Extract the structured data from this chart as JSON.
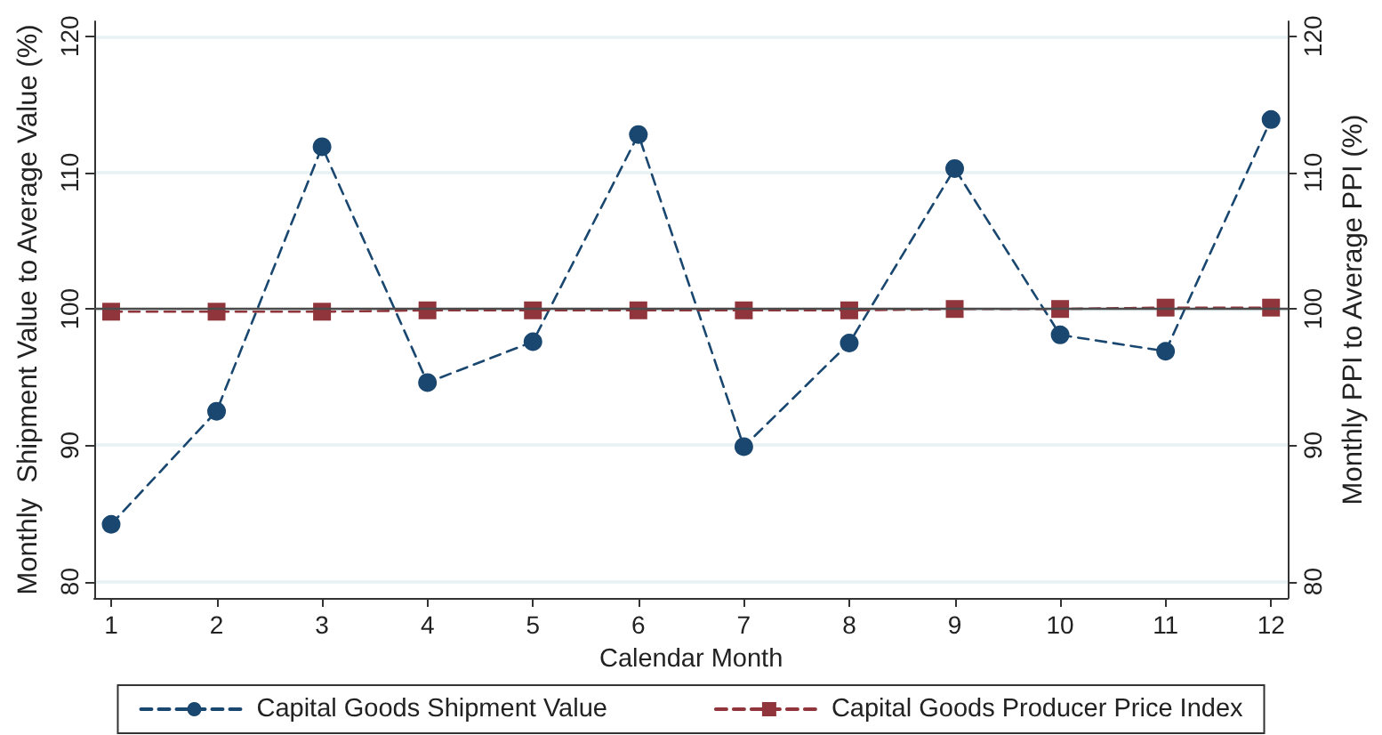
{
  "chart_data": {
    "type": "line",
    "x": [
      1,
      2,
      3,
      4,
      5,
      6,
      7,
      8,
      9,
      10,
      11,
      12
    ],
    "xlim": [
      0.84,
      12.16
    ],
    "xticks": [
      1,
      2,
      3,
      4,
      5,
      6,
      7,
      8,
      9,
      10,
      11,
      12
    ],
    "ylim": [
      78.8,
      121.1
    ],
    "yticks": [
      80,
      90,
      100,
      110,
      120
    ],
    "y2lim": [
      78.8,
      121.1
    ],
    "y2ticks": [
      80,
      90,
      100,
      110,
      120
    ],
    "xlabel": "Calendar Month",
    "ylabel": "Monthly  Shipment Value to Average Value (%)",
    "y2label": "Monthly PPI to Average PPI (%)",
    "series": [
      {
        "name": "Capital Goods Shipment Value",
        "color": "#1a476f",
        "marker": "circle",
        "values": [
          84.2,
          92.5,
          111.9,
          94.6,
          97.6,
          112.8,
          89.9,
          97.5,
          110.3,
          98.1,
          96.9,
          113.9
        ]
      },
      {
        "name": "Capital Goods Producer Price Index",
        "color": "#90353b",
        "marker": "square",
        "values": [
          99.8,
          99.8,
          99.8,
          99.9,
          99.9,
          99.9,
          99.9,
          99.9,
          100.0,
          100.0,
          100.1,
          100.1
        ]
      }
    ],
    "line_style": "dashed",
    "grid": "y",
    "legend": "bottom",
    "ref_lines": [
      {
        "axis": "y",
        "value": 100,
        "color": "#4b4b4b"
      }
    ]
  }
}
